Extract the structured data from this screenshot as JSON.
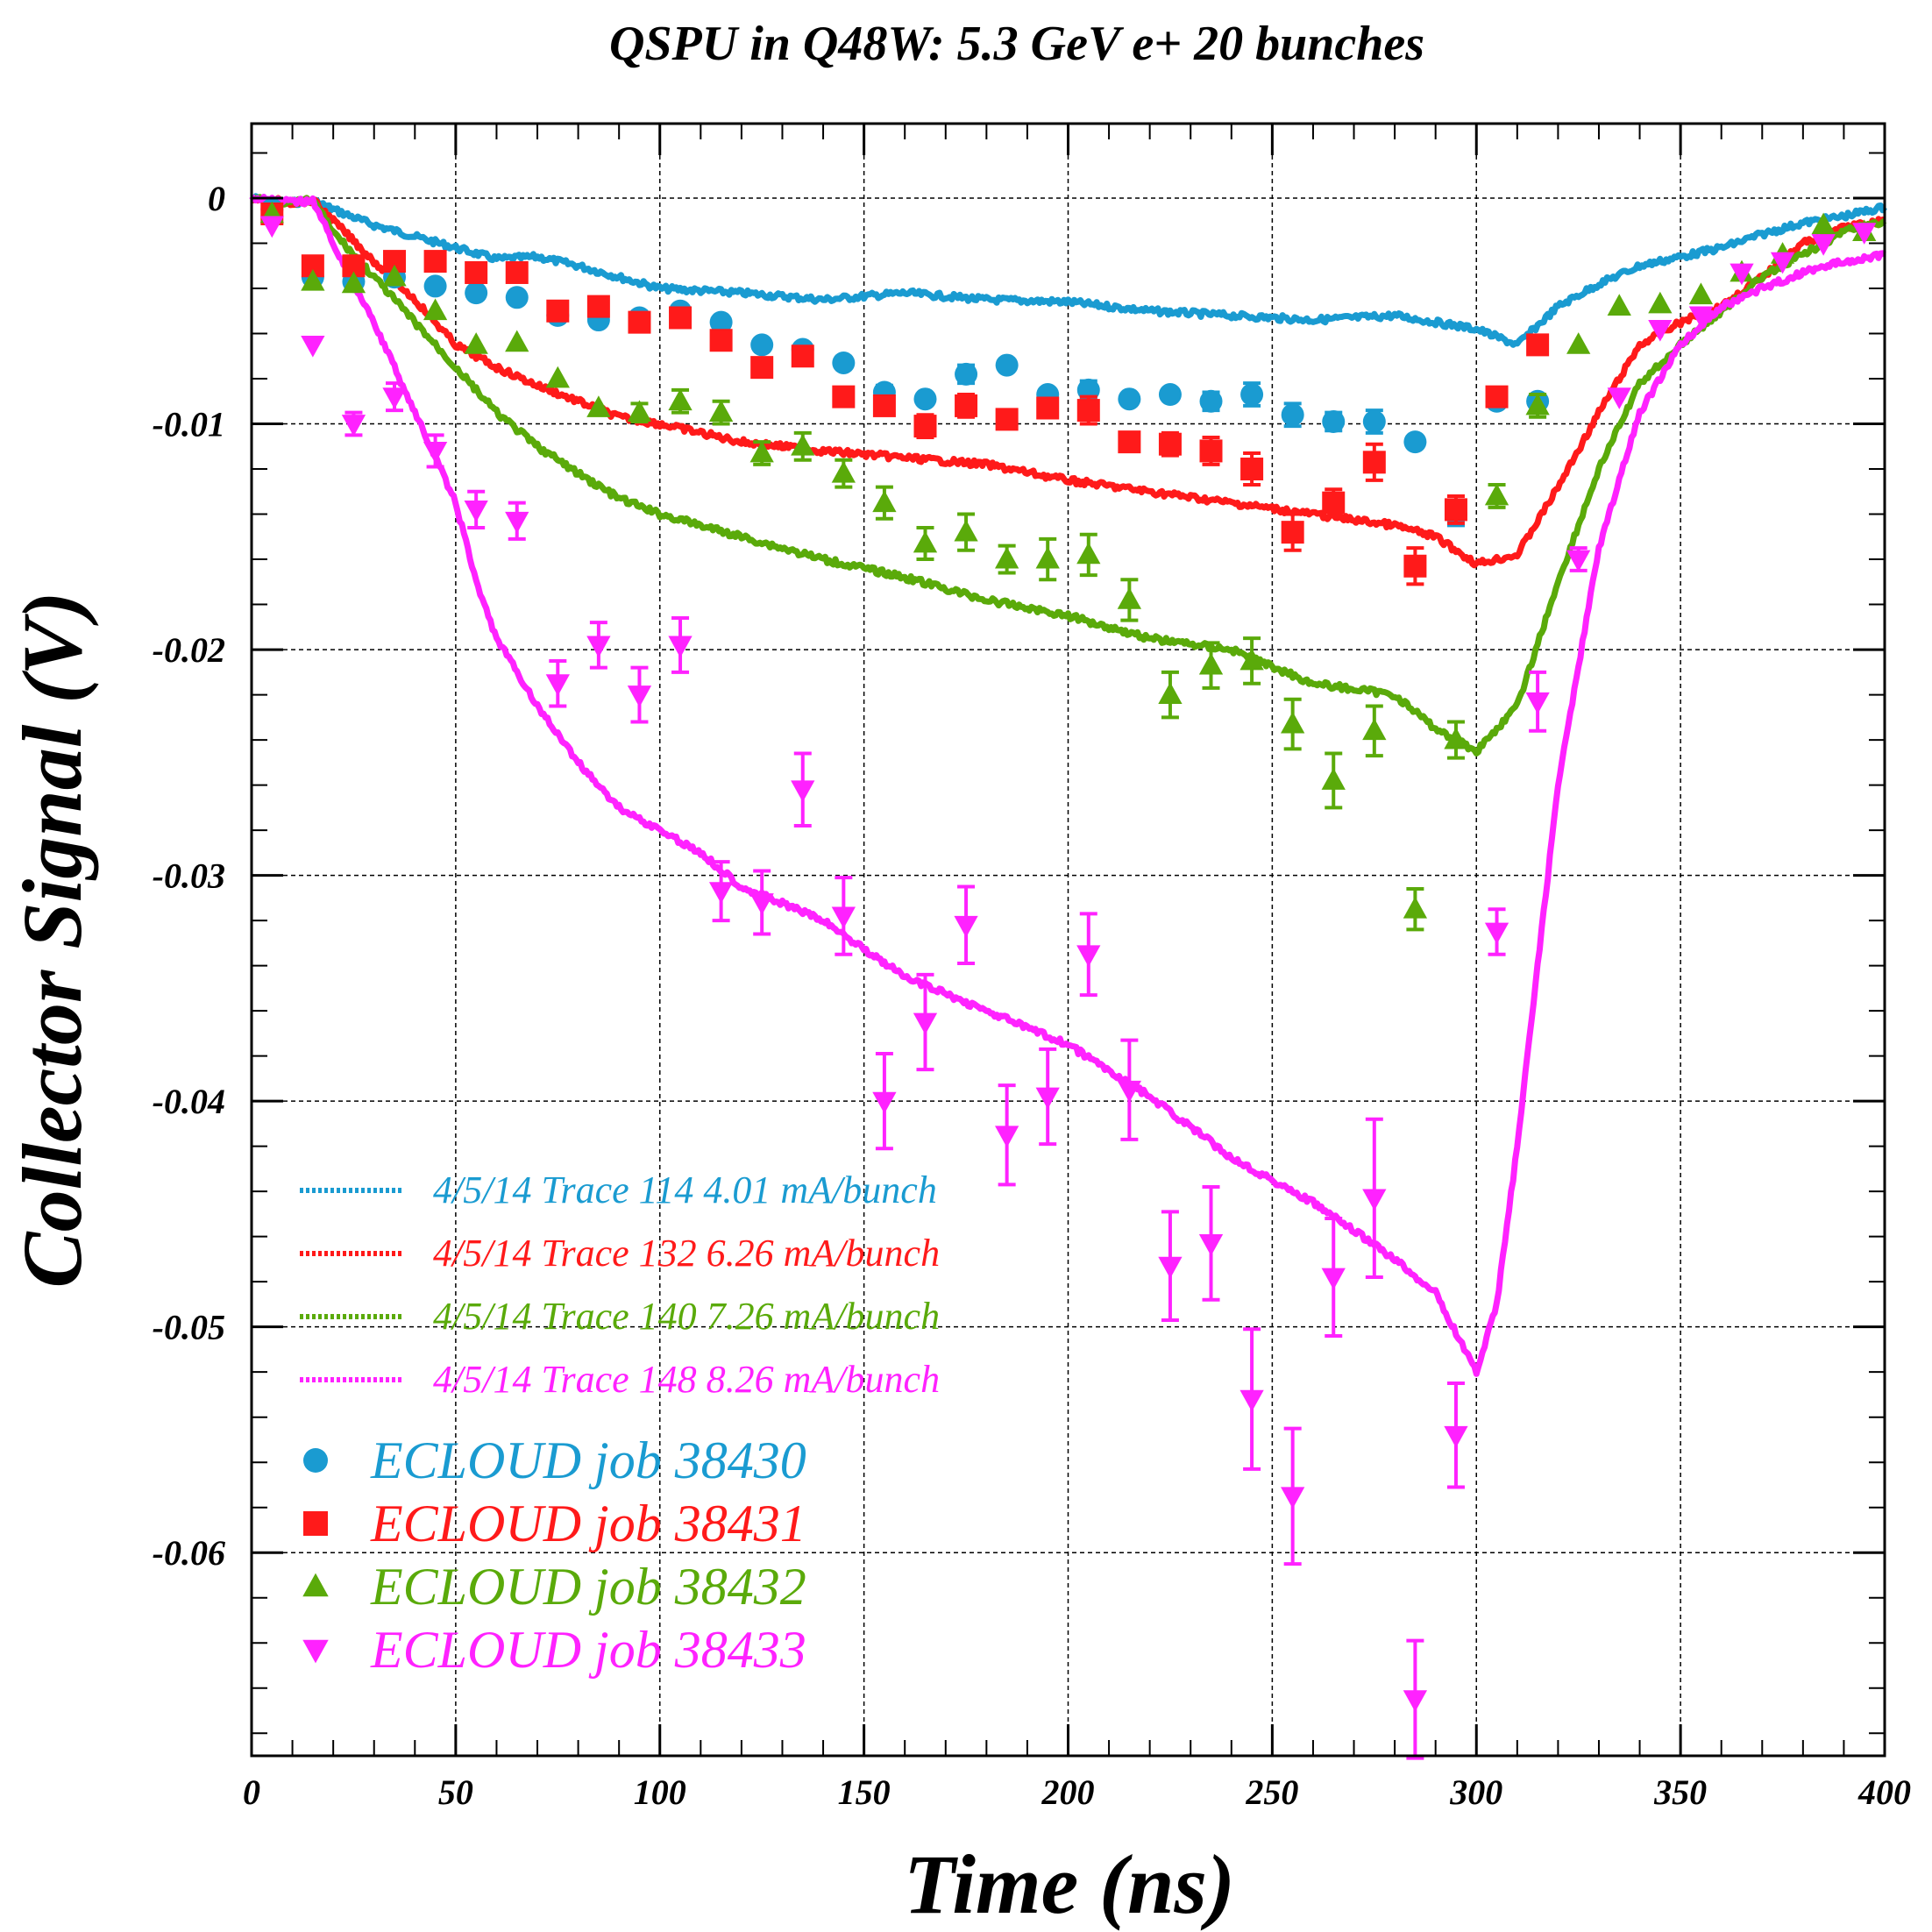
{
  "chart_data": {
    "type": "line",
    "title": "QSPU in Q48W:  5.3 GeV e+ 20 bunches",
    "xlabel": "Time (ns)",
    "ylabel": "Collector Signal (V)",
    "xlim": [
      0,
      400
    ],
    "ylim": [
      -0.069,
      0.0033
    ],
    "xticks": [
      0,
      50,
      100,
      150,
      200,
      250,
      300,
      350,
      400
    ],
    "xtick_labels": [
      "0",
      "50",
      "100",
      "150",
      "200",
      "250",
      "300",
      "350",
      "400"
    ],
    "yticks": [
      0,
      -0.01,
      -0.02,
      -0.03,
      -0.04,
      -0.05,
      -0.06
    ],
    "ytick_labels": [
      "0",
      "-0.01",
      "-0.02",
      "-0.03",
      "-0.04",
      "-0.05",
      "-0.06"
    ],
    "grid": true,
    "legend_position": "bottom-left",
    "series": [
      {
        "name": "4/5/14 Trace 114  4.01 mA/bunch",
        "kind": "trace",
        "color": "#1a9bd1",
        "x": [
          0,
          10,
          15,
          20,
          30,
          40,
          50,
          60,
          70,
          80,
          90,
          100,
          120,
          140,
          160,
          180,
          200,
          220,
          240,
          260,
          280,
          300,
          310,
          320,
          330,
          340,
          350,
          360,
          370,
          380,
          390,
          400
        ],
        "y": [
          0,
          -0.0002,
          -0.0001,
          -0.0005,
          -0.0012,
          -0.0017,
          -0.0022,
          -0.0027,
          -0.0026,
          -0.003,
          -0.0035,
          -0.004,
          -0.0042,
          -0.0045,
          -0.0042,
          -0.0045,
          -0.0046,
          -0.005,
          -0.0052,
          -0.0054,
          -0.0052,
          -0.0058,
          -0.0065,
          -0.0048,
          -0.0038,
          -0.003,
          -0.0026,
          -0.0022,
          -0.0016,
          -0.0011,
          -0.0008,
          -0.0004
        ]
      },
      {
        "name": "4/5/14 Trace 132  6.26 mA/bunch",
        "kind": "trace",
        "color": "#ff1a1a",
        "x": [
          0,
          10,
          15,
          20,
          30,
          40,
          50,
          60,
          70,
          80,
          90,
          100,
          120,
          140,
          160,
          180,
          200,
          220,
          240,
          260,
          280,
          290,
          300,
          310,
          320,
          330,
          340,
          350,
          360,
          370,
          380,
          390,
          400
        ],
        "y": [
          0,
          -0.0002,
          -0.0001,
          -0.001,
          -0.0028,
          -0.0045,
          -0.0065,
          -0.0075,
          -0.0083,
          -0.009,
          -0.0097,
          -0.01,
          -0.0108,
          -0.0112,
          -0.0115,
          -0.0118,
          -0.0125,
          -0.013,
          -0.0135,
          -0.014,
          -0.0145,
          -0.015,
          -0.0162,
          -0.0158,
          -0.0128,
          -0.0095,
          -0.0065,
          -0.0055,
          -0.0048,
          -0.0035,
          -0.002,
          -0.0013,
          -0.001
        ]
      },
      {
        "name": "4/5/14 Trace 140  7.26 mA/bunch",
        "kind": "trace",
        "color": "#5aaa0a",
        "x": [
          0,
          10,
          15,
          20,
          30,
          40,
          50,
          60,
          70,
          80,
          90,
          100,
          120,
          140,
          160,
          180,
          200,
          220,
          240,
          260,
          280,
          290,
          300,
          310,
          320,
          330,
          340,
          350,
          360,
          370,
          380,
          390,
          400
        ],
        "y": [
          0,
          -0.0002,
          -0.0001,
          -0.0015,
          -0.0035,
          -0.0055,
          -0.0075,
          -0.0095,
          -0.011,
          -0.0122,
          -0.0133,
          -0.014,
          -0.015,
          -0.016,
          -0.0168,
          -0.0178,
          -0.0185,
          -0.0195,
          -0.02,
          -0.0215,
          -0.022,
          -0.0235,
          -0.0245,
          -0.0225,
          -0.017,
          -0.012,
          -0.0082,
          -0.0065,
          -0.005,
          -0.0035,
          -0.0025,
          -0.0015,
          -0.001
        ]
      },
      {
        "name": "4/5/14 Trace 148  8.26 mA/bunch",
        "kind": "trace",
        "color": "#ff22ff",
        "x": [
          0,
          10,
          15,
          20,
          30,
          40,
          50,
          55,
          60,
          70,
          80,
          90,
          100,
          110,
          120,
          140,
          160,
          180,
          200,
          220,
          240,
          260,
          280,
          290,
          300,
          305,
          310,
          320,
          330,
          340,
          350,
          360,
          370,
          380,
          390,
          400
        ],
        "y": [
          0,
          -0.0002,
          -0.0001,
          -0.002,
          -0.0055,
          -0.0095,
          -0.0135,
          -0.017,
          -0.0195,
          -0.0225,
          -0.025,
          -0.027,
          -0.028,
          -0.029,
          -0.0305,
          -0.032,
          -0.0345,
          -0.036,
          -0.0375,
          -0.0398,
          -0.0425,
          -0.0445,
          -0.047,
          -0.0485,
          -0.052,
          -0.049,
          -0.042,
          -0.026,
          -0.0155,
          -0.0095,
          -0.0065,
          -0.0048,
          -0.004,
          -0.0033,
          -0.0028,
          -0.0025
        ]
      },
      {
        "name": "ECLOUD job 38430",
        "kind": "marker",
        "marker": "circle",
        "color": "#1a9bd1",
        "x": [
          5,
          15,
          25,
          35,
          45,
          55,
          65,
          75,
          85,
          95,
          105,
          115,
          125,
          135,
          145,
          155,
          165,
          175,
          185,
          195,
          205,
          215,
          225,
          235,
          245,
          255,
          265,
          275,
          285,
          295,
          305,
          315
        ],
        "y": [
          -0.0005,
          -0.0035,
          -0.0037,
          -0.0035,
          -0.0039,
          -0.0042,
          -0.0044,
          -0.0052,
          -0.0054,
          -0.0053,
          -0.005,
          -0.0055,
          -0.0065,
          -0.0067,
          -0.0073,
          -0.0086,
          -0.0089,
          -0.0078,
          -0.0074,
          -0.0087,
          -0.0085,
          -0.0089,
          -0.0087,
          -0.009,
          -0.0087,
          -0.0096,
          -0.0099,
          -0.0099,
          -0.0108,
          -0.014,
          -0.009,
          -0.009
        ],
        "err": [
          0,
          0,
          0,
          0,
          0,
          0,
          0,
          0,
          0,
          0,
          0,
          0,
          0,
          0,
          0,
          0.0003,
          0,
          0.0004,
          0,
          0,
          0.0004,
          0,
          0,
          0.0004,
          0.0005,
          0.0005,
          0.0004,
          0.0005,
          0,
          0.0005,
          0,
          0
        ]
      },
      {
        "name": "ECLOUD job 38431",
        "kind": "marker",
        "marker": "square",
        "color": "#ff1a1a",
        "x": [
          5,
          15,
          25,
          35,
          45,
          55,
          65,
          75,
          85,
          95,
          105,
          115,
          125,
          135,
          145,
          155,
          165,
          175,
          185,
          195,
          205,
          215,
          225,
          235,
          245,
          255,
          265,
          275,
          285,
          295,
          305,
          315
        ],
        "y": [
          -0.0007,
          -0.003,
          -0.003,
          -0.0028,
          -0.0028,
          -0.0033,
          -0.0033,
          -0.005,
          -0.0048,
          -0.0055,
          -0.0053,
          -0.0063,
          -0.0075,
          -0.007,
          -0.0088,
          -0.0092,
          -0.0101,
          -0.0092,
          -0.0098,
          -0.0093,
          -0.0094,
          -0.0108,
          -0.0109,
          -0.0112,
          -0.012,
          -0.0148,
          -0.0135,
          -0.0117,
          -0.0163,
          -0.0138,
          -0.0088,
          -0.0065
        ],
        "err": [
          0,
          0,
          0,
          0,
          0,
          0,
          0,
          0,
          0,
          0,
          0,
          0,
          0,
          0,
          0,
          0,
          0.0005,
          0.0005,
          0,
          0.0004,
          0.0006,
          0,
          0.0005,
          0.0006,
          0.0007,
          0.0008,
          0.0006,
          0.0008,
          0.0008,
          0.0006,
          0,
          0
        ]
      },
      {
        "name": "ECLOUD job 38432",
        "kind": "marker",
        "marker": "triangle-up",
        "color": "#5aaa0a",
        "x": [
          5,
          15,
          25,
          35,
          45,
          55,
          65,
          75,
          85,
          95,
          105,
          115,
          125,
          135,
          145,
          155,
          165,
          175,
          185,
          195,
          205,
          215,
          225,
          235,
          245,
          255,
          265,
          275,
          285,
          295,
          305,
          315,
          325,
          335,
          345,
          355,
          365,
          375,
          385,
          395
        ],
        "y": [
          -0.0007,
          -0.0037,
          -0.0038,
          -0.0035,
          -0.005,
          -0.0065,
          -0.0064,
          -0.008,
          -0.0093,
          -0.0095,
          -0.009,
          -0.0095,
          -0.0113,
          -0.011,
          -0.0122,
          -0.0135,
          -0.0153,
          -0.0148,
          -0.016,
          -0.016,
          -0.0158,
          -0.0178,
          -0.022,
          -0.0207,
          -0.0205,
          -0.0233,
          -0.0258,
          -0.0236,
          -0.0315,
          -0.024,
          -0.0132,
          -0.0092,
          -0.0065,
          -0.0048,
          -0.0047,
          -0.0043,
          -0.0033,
          -0.0025,
          -0.0012,
          -0.0015
        ],
        "err": [
          0,
          0,
          0,
          0,
          0,
          0,
          0,
          0,
          0,
          0.0004,
          0.0005,
          0.0005,
          0.0005,
          0.0006,
          0.0006,
          0.0007,
          0.0007,
          0.0008,
          0.0006,
          0.0009,
          0.0009,
          0.0009,
          0.001,
          0.001,
          0.001,
          0.0011,
          0.0012,
          0.0011,
          0.0009,
          0.0008,
          0.0005,
          0.0005,
          0,
          0,
          0,
          0,
          0,
          0,
          0,
          0
        ]
      },
      {
        "name": "ECLOUD job 38433",
        "kind": "marker",
        "marker": "triangle-down",
        "color": "#ff22ff",
        "x": [
          5,
          15,
          25,
          35,
          45,
          55,
          65,
          75,
          85,
          95,
          105,
          115,
          125,
          135,
          145,
          155,
          165,
          175,
          185,
          195,
          205,
          215,
          225,
          235,
          245,
          255,
          265,
          275,
          285,
          295,
          305,
          315,
          325,
          335,
          345,
          355,
          365,
          375,
          385,
          395
        ],
        "y": [
          -0.0012,
          -0.0065,
          -0.01,
          -0.0088,
          -0.0112,
          -0.0138,
          -0.0143,
          -0.0215,
          -0.0198,
          -0.022,
          -0.0198,
          -0.0307,
          -0.0312,
          -0.0262,
          -0.0318,
          -0.04,
          -0.0365,
          -0.0322,
          -0.0415,
          -0.0398,
          -0.0335,
          -0.0395,
          -0.0473,
          -0.0463,
          -0.0532,
          -0.0575,
          -0.0478,
          -0.0443,
          -0.0665,
          -0.0548,
          -0.0325,
          -0.0223,
          -0.016,
          -0.0088,
          -0.0058,
          -0.0052,
          -0.0033,
          -0.0028,
          -0.002,
          -0.0015
        ],
        "err": [
          0,
          0,
          0.0005,
          0.0006,
          0.0007,
          0.0008,
          0.0008,
          0.001,
          0.001,
          0.0012,
          0.0012,
          0.0013,
          0.0014,
          0.0016,
          0.0017,
          0.0021,
          0.0021,
          0.0017,
          0.0022,
          0.0021,
          0.0018,
          0.0022,
          0.0024,
          0.0025,
          0.0031,
          0.003,
          0.0026,
          0.0035,
          0.0026,
          0.0023,
          0.001,
          0.0013,
          0.0005,
          0,
          0,
          0,
          0,
          0,
          0,
          0
        ]
      }
    ]
  }
}
